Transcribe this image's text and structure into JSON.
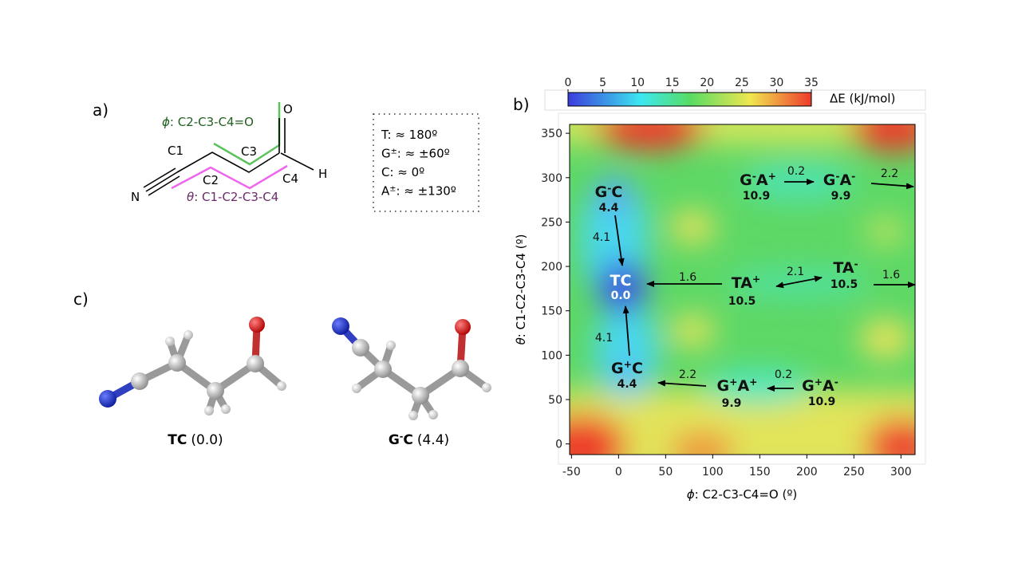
{
  "panel_a": {
    "label": "a)",
    "phi_symbol": "ϕ",
    "phi_text": ": C2-C3-C4=O",
    "theta_symbol": "θ",
    "theta_text": ": C1-C2-C3-C4",
    "atoms": [
      "O",
      "C1",
      "C3",
      "H",
      "C2",
      "C4",
      "N"
    ],
    "legend": [
      {
        "parts": [
          "T"
        ],
        "text": ": ≈ 180º"
      },
      {
        "parts": [
          "G",
          "±"
        ],
        "text": ": ≈ ±60º"
      },
      {
        "parts": [
          "C"
        ],
        "text": ": ≈ 0º"
      },
      {
        "parts": [
          "A",
          "±"
        ],
        "text": ": ≈ ±130º"
      }
    ]
  },
  "panel_b": {
    "label": "b)",
    "colorbar": {
      "lim": [
        0,
        35
      ],
      "ticks": [
        0,
        5,
        10,
        15,
        20,
        25,
        30,
        35
      ],
      "label": "ΔE (kJ/mol)"
    },
    "xlim": [
      -52,
      315
    ],
    "ylim": [
      -12,
      360
    ],
    "xticks": [
      -50,
      0,
      50,
      100,
      150,
      200,
      250,
      300
    ],
    "yticks": [
      0,
      50,
      100,
      150,
      200,
      250,
      300,
      350
    ],
    "phi_symbol": "ϕ",
    "xlabel": ": C2-C3-C4=O (º)",
    "theta_symbol": "θ",
    "ylabel": ": C1-C2-C3-C4 (º)",
    "states": [
      {
        "parts": [
          "G",
          "-",
          "C"
        ],
        "energy": "4.4"
      },
      {
        "parts": [
          "TC"
        ],
        "energy": "0.0"
      },
      {
        "parts": [
          "G",
          "+",
          "C"
        ],
        "energy": "4.4"
      },
      {
        "parts": [
          "G",
          "-",
          "A",
          "+"
        ],
        "energy": "10.9"
      },
      {
        "parts": [
          "G",
          "-",
          "A",
          "-"
        ],
        "energy": "9.9"
      },
      {
        "parts": [
          "TA",
          "+"
        ],
        "energy": "10.5"
      },
      {
        "parts": [
          "TA",
          "-"
        ],
        "energy": "10.5"
      },
      {
        "parts": [
          "G",
          "+",
          "A",
          "+"
        ],
        "energy": "9.9"
      },
      {
        "parts": [
          "G",
          "+",
          "A",
          "-"
        ],
        "energy": "10.9"
      }
    ],
    "barriers": [
      "0.2",
      "2.2",
      "4.1",
      "1.6",
      "2.1",
      "1.6",
      "4.1",
      "2.2",
      "0.2"
    ]
  },
  "panel_c": {
    "label": "c)",
    "molecules": [
      {
        "parts": [
          "TC"
        ],
        "energy": "(0.0)"
      },
      {
        "parts": [
          "G",
          "-",
          "C"
        ],
        "energy": "(4.4)"
      }
    ]
  }
}
